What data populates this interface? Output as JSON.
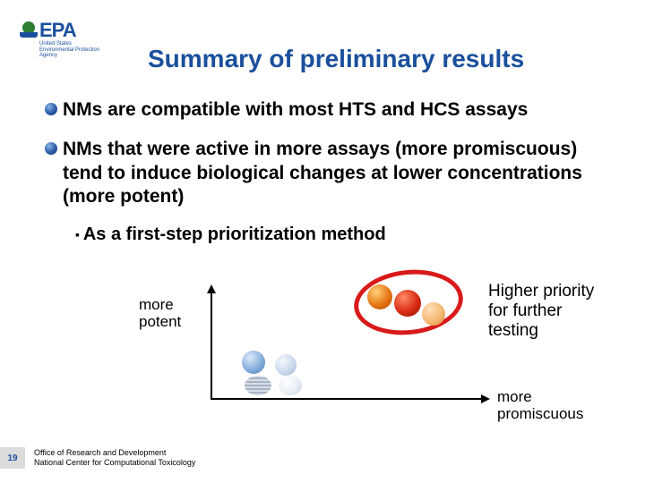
{
  "logo": {
    "acronym": "EPA",
    "sub_line1": "United States",
    "sub_line2": "Environmental Protection",
    "sub_line3": "Agency"
  },
  "title": "Summary of preliminary results",
  "bullets": {
    "b1": "NMs are compatible with most HTS and HCS assays",
    "b2": "NMs that were active in more assays (more promiscuous) tend to induce biological changes at lower concentrations (more potent)",
    "sub1": "As a first-step prioritization method"
  },
  "diagram": {
    "y_label": "more\npotent",
    "x_label": "more\npromiscuous",
    "priority_label": "Higher priority\nfor further\ntesting",
    "colors": {
      "axis": "#000000",
      "ring": "#d91a1a",
      "low_spheres": [
        "#7da9d8",
        "#c7d7ec",
        "#a8b4c6",
        "#e6ecf5"
      ],
      "high_spheres": [
        "#e67615",
        "#d92b12",
        "#f5b46e"
      ]
    },
    "low_cluster_count": 4,
    "high_cluster_count": 3
  },
  "footer": {
    "slide_number": "19",
    "line1": "Office of Research and Development",
    "line2": "National Center for Computational Toxicology"
  },
  "style": {
    "title_color": "#1a4f9c",
    "title_fontsize_pt": 28,
    "body_fontsize_pt": 21,
    "background": "#ffffff"
  }
}
